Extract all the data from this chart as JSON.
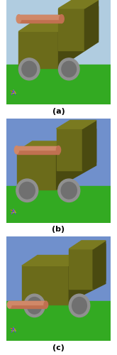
{
  "fig_width": 1.65,
  "fig_height": 5.0,
  "dpi": 100,
  "bg_color": "#ffffff",
  "panel_labels": [
    "(a)",
    "(b)",
    "(c)"
  ],
  "label_fontsize": 8,
  "label_fontweight": "bold",
  "sky_color_a": "#b0cce0",
  "sky_color_bc": "#7090cc",
  "ground_color": "#33aa22",
  "truck_front_color": "#6b6b1a",
  "truck_top_color": "#7a7a20",
  "truck_side_color": "#4a4a10",
  "wheel_color": "#909090",
  "wheel_dark_color": "#707070",
  "canister_body_color": "#c07050",
  "canister_light_color": "#d08868",
  "canister_dark_color": "#a05838",
  "separator_color": "#bbbbbb",
  "axis_x_color": "#ff4444",
  "axis_y_color": "#44cc44",
  "axis_z_color": "#4444ff"
}
